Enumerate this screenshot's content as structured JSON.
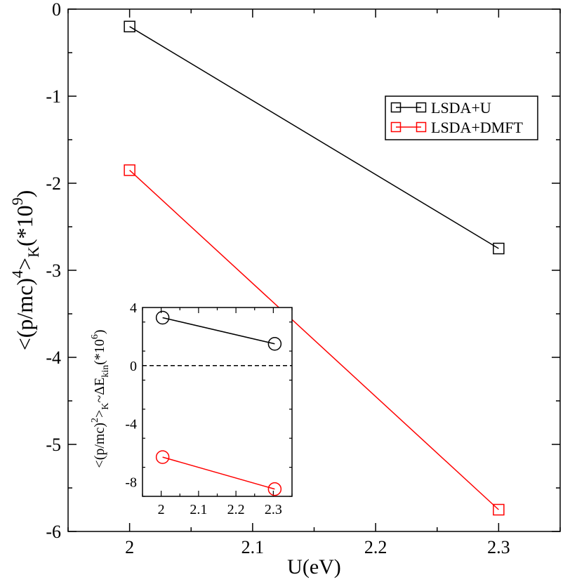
{
  "chart_data": [
    {
      "type": "line",
      "xlabel": "U(eV)",
      "ylabel_parts": {
        "main": "<(p/mc)",
        "sup": "4",
        "after": ">",
        "sub": "K",
        "paren": "(*10",
        "exp": "9",
        "close": ")"
      },
      "xlim": [
        1.95,
        2.35
      ],
      "ylim": [
        -6,
        0
      ],
      "xticks": [
        2,
        2.1,
        2.2,
        2.3
      ],
      "xtick_labels": [
        "2",
        "2.1",
        "2.2",
        "2.3"
      ],
      "yticks": [
        0,
        -1,
        -2,
        -3,
        -4,
        -5,
        -6
      ],
      "ytick_labels": [
        "0",
        "-1",
        "-2",
        "-3",
        "-4",
        "-5",
        "-6"
      ],
      "legend_position": "top-right",
      "series": [
        {
          "name": "LSDA+U",
          "color": "#000000",
          "marker": "square",
          "x": [
            2.0,
            2.3
          ],
          "values": [
            -0.2,
            -2.75
          ]
        },
        {
          "name": "LSDA+DMFT",
          "color": "#ff0000",
          "marker": "square",
          "x": [
            2.0,
            2.3
          ],
          "values": [
            -1.85,
            -5.75
          ]
        }
      ]
    },
    {
      "type": "line",
      "inset": true,
      "xlabel": "",
      "ylabel_parts": {
        "main": "<(p/mc)",
        "sup": "2",
        "after": ">",
        "sub": "K",
        "mid": "~ΔE",
        "sub2": "kin",
        "paren": "(*10",
        "exp": "6",
        "close": ")"
      },
      "xlim": [
        1.95,
        2.35
      ],
      "ylim": [
        -9,
        4
      ],
      "xticks": [
        2,
        2.1,
        2.2,
        2.3
      ],
      "xtick_labels": [
        "2",
        "2.1",
        "2.2",
        "2.3"
      ],
      "yticks": [
        4,
        0,
        -4,
        -8
      ],
      "ytick_labels": [
        "4",
        "0",
        "-4",
        "-8"
      ],
      "reference_line": {
        "y": 0,
        "style": "dashed"
      },
      "series": [
        {
          "name": "LSDA+U",
          "color": "#000000",
          "marker": "circle",
          "x": [
            2.0,
            2.3
          ],
          "values": [
            3.3,
            1.5
          ]
        },
        {
          "name": "LSDA+DMFT",
          "color": "#ff0000",
          "marker": "circle",
          "x": [
            2.0,
            2.3
          ],
          "values": [
            -6.3,
            -8.5
          ]
        }
      ]
    }
  ]
}
